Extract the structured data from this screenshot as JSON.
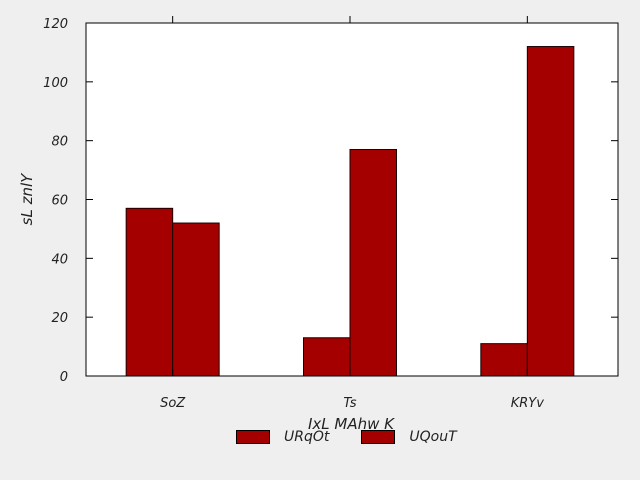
{
  "chart_data": {
    "type": "bar",
    "title": "",
    "xlabel": "IxL  MAhw K",
    "ylabel": "sL znlY",
    "categories": [
      "SoZ",
      "Ts",
      "KRYv"
    ],
    "series": [
      {
        "name": "URqOt",
        "values": [
          57,
          13,
          11
        ],
        "color": "#a50000"
      },
      {
        "name": "UQouT",
        "values": [
          52,
          77,
          112
        ],
        "color": "#a50000"
      }
    ],
    "ylim": [
      0,
      120
    ],
    "yticks": [
      0,
      20,
      40,
      60,
      80,
      100,
      120
    ],
    "grid": false,
    "legend_position": "bottom"
  }
}
